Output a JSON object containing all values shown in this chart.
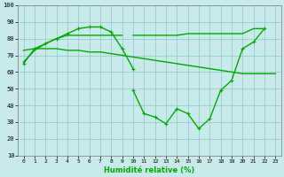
{
  "x_all": [
    0,
    1,
    2,
    3,
    4,
    5,
    6,
    7,
    8,
    9,
    10,
    11,
    12,
    13,
    14,
    15,
    16,
    17,
    18,
    19,
    20,
    21,
    22,
    23
  ],
  "line1_y": [
    65,
    74,
    77,
    80,
    83,
    86,
    87,
    87,
    84,
    74,
    62,
    null,
    null,
    null,
    null,
    null,
    null,
    null,
    null,
    null,
    null,
    null,
    null,
    null
  ],
  "line2_y": [
    73,
    74,
    74,
    74,
    73,
    73,
    72,
    72,
    71,
    70,
    69,
    68,
    67,
    66,
    65,
    64,
    63,
    62,
    61,
    60,
    59,
    59,
    59,
    59
  ],
  "line3_y": [
    null,
    null,
    null,
    null,
    null,
    null,
    null,
    null,
    null,
    null,
    49,
    35,
    33,
    29,
    38,
    35,
    26,
    32,
    49,
    55,
    74,
    78,
    86,
    null
  ],
  "line3_left_y": [
    66,
    73,
    77,
    80,
    82,
    82,
    82,
    82,
    82,
    82,
    null,
    null,
    null,
    null,
    null,
    null,
    null,
    null,
    null,
    null,
    null,
    null,
    null,
    null
  ],
  "line4_flat_x": [
    10,
    11,
    12,
    13,
    14,
    15,
    16,
    17,
    18,
    19,
    20,
    21,
    22
  ],
  "line4_flat_y": [
    82,
    82,
    82,
    82,
    82,
    83,
    83,
    83,
    83,
    83,
    83,
    86,
    86
  ],
  "xlabel": "Humidité relative (%)",
  "ylim": [
    10,
    100
  ],
  "xlim": [
    -0.5,
    23.5
  ],
  "yticks": [
    10,
    20,
    30,
    40,
    50,
    60,
    70,
    80,
    90,
    100
  ],
  "xticks": [
    0,
    1,
    2,
    3,
    4,
    5,
    6,
    7,
    8,
    9,
    10,
    11,
    12,
    13,
    14,
    15,
    16,
    17,
    18,
    19,
    20,
    21,
    22,
    23
  ],
  "line_color": "#00aa00",
  "bg_color": "#c8eaea",
  "grid_color": "#99cccc",
  "marker": "+"
}
